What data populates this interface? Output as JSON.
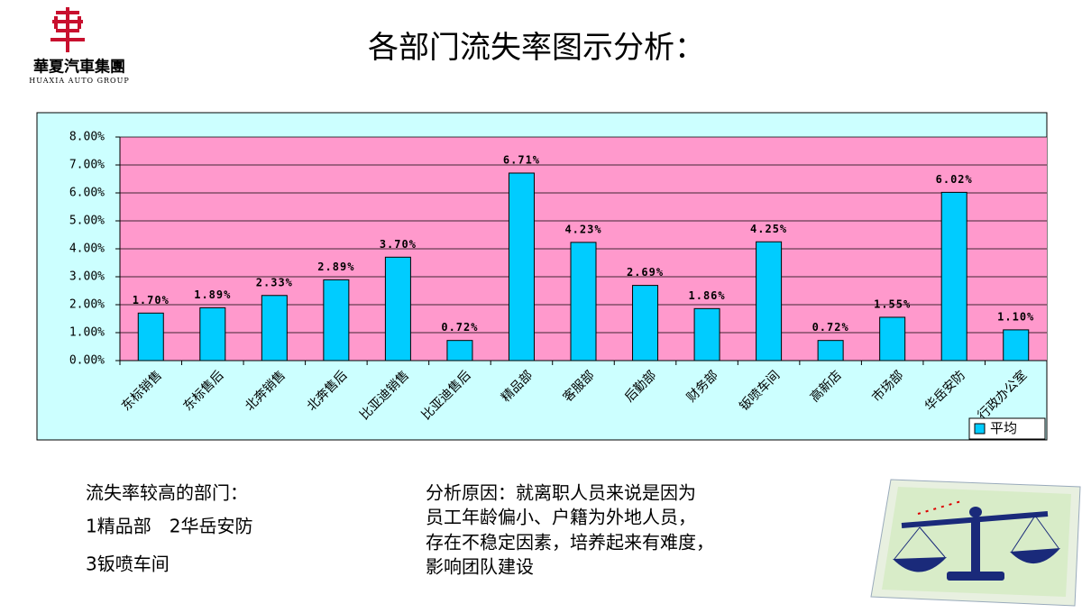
{
  "header": {
    "title": "各部门流失率图示分析：",
    "logo_name": "華夏汽車集團",
    "logo_sub": "HUAXIA AUTO GROUP"
  },
  "chart_data": {
    "type": "bar",
    "categories": [
      "东标销售",
      "东标售后",
      "北奔销售",
      "北奔售后",
      "比亚迪销售",
      "比亚迪售后",
      "精品部",
      "客服部",
      "后勤部",
      "财务部",
      "钣喷车间",
      "高新店",
      "市场部",
      "华岳安防",
      "行政办公室"
    ],
    "series": [
      {
        "name": "平均",
        "color": "#00ccff",
        "values": [
          1.7,
          1.89,
          2.33,
          2.89,
          3.7,
          0.72,
          6.71,
          4.23,
          2.69,
          1.86,
          4.25,
          0.72,
          1.55,
          6.02,
          1.1
        ],
        "value_labels": [
          "1.70%",
          "1.89%",
          "2.33%",
          "2.89%",
          "3.70%",
          "0.72%",
          "6.71%",
          "4.23%",
          "2.69%",
          "1.86%",
          "4.25%",
          "0.72%",
          "1.55%",
          "6.02%",
          "1.10%"
        ]
      }
    ],
    "ylim": [
      0,
      8
    ],
    "yticks": [
      {
        "value": 0,
        "label": "0.00%"
      },
      {
        "value": 1,
        "label": "1.00%"
      },
      {
        "value": 2,
        "label": "2.00%"
      },
      {
        "value": 3,
        "label": "3.00%"
      },
      {
        "value": 4,
        "label": "4.00%"
      },
      {
        "value": 5,
        "label": "5.00%"
      },
      {
        "value": 6,
        "label": "6.00%"
      },
      {
        "value": 7,
        "label": "7.00%"
      },
      {
        "value": 8,
        "label": "8.00%"
      }
    ],
    "grid": true,
    "legend": "bottom-right",
    "plot_background": "#ff99cc",
    "background": "#ccffff"
  },
  "notes": {
    "left_lines": [
      "流失率较高的部门：",
      "1精品部　2华岳安防",
      "3钣喷车间"
    ],
    "right_lines": [
      "分析原因：就离职人员来说是因为",
      "员工年龄偏小、户籍为外地人员，",
      "存在不稳定因素，培养起来有难度，",
      "影响团队建设"
    ]
  }
}
